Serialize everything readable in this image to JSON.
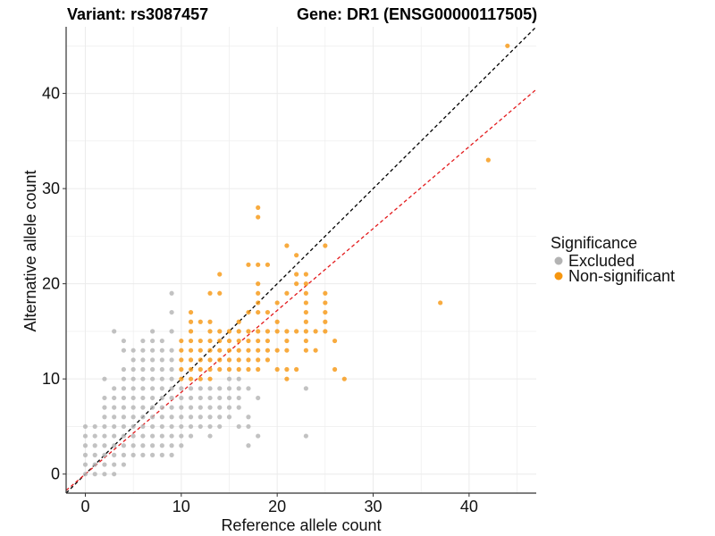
{
  "titles": {
    "variant": "Variant: rs3087457",
    "gene": "Gene: DR1 (ENSG00000117505)"
  },
  "colors": {
    "excluded": "#b3b3b3",
    "non_significant": "#f6960f",
    "identity_line": "#000000",
    "fit_line": "#e31a1c",
    "grid": "#ebebeb"
  },
  "chart_data": {
    "type": "scatter",
    "xlabel": "Reference allele count",
    "ylabel": "Alternative allele count",
    "xlim": [
      -2,
      47
    ],
    "ylim": [
      -2,
      47
    ],
    "xticks": [
      0,
      10,
      20,
      30,
      40
    ],
    "yticks": [
      0,
      10,
      20,
      30,
      40
    ],
    "grid": true,
    "legend": {
      "title": "Significance",
      "position": "right",
      "entries": [
        "Excluded",
        "Non-significant"
      ]
    },
    "reference_lines": [
      {
        "style": "dashed",
        "color": "black",
        "slope": 1,
        "intercept": 0
      },
      {
        "style": "dashed",
        "color": "red",
        "slope": 0.86,
        "intercept": 0
      }
    ],
    "series": [
      {
        "name": "Excluded",
        "points": [
          [
            0,
            0
          ],
          [
            0,
            1
          ],
          [
            0,
            2
          ],
          [
            0,
            3
          ],
          [
            0,
            4
          ],
          [
            0,
            5
          ],
          [
            1,
            0
          ],
          [
            1,
            1
          ],
          [
            1,
            2
          ],
          [
            1,
            3
          ],
          [
            1,
            4
          ],
          [
            1,
            5
          ],
          [
            2,
            0
          ],
          [
            2,
            1
          ],
          [
            2,
            2
          ],
          [
            2,
            3
          ],
          [
            2,
            4
          ],
          [
            2,
            5
          ],
          [
            2,
            6
          ],
          [
            2,
            7
          ],
          [
            2,
            8
          ],
          [
            2,
            10
          ],
          [
            3,
            0
          ],
          [
            3,
            1
          ],
          [
            3,
            2
          ],
          [
            3,
            3
          ],
          [
            3,
            4
          ],
          [
            3,
            5
          ],
          [
            3,
            6
          ],
          [
            3,
            7
          ],
          [
            3,
            8
          ],
          [
            3,
            9
          ],
          [
            3,
            15
          ],
          [
            4,
            1
          ],
          [
            4,
            2
          ],
          [
            4,
            3
          ],
          [
            4,
            4
          ],
          [
            4,
            5
          ],
          [
            4,
            6
          ],
          [
            4,
            7
          ],
          [
            4,
            8
          ],
          [
            4,
            9
          ],
          [
            4,
            10
          ],
          [
            4,
            11
          ],
          [
            4,
            13
          ],
          [
            4,
            14
          ],
          [
            5,
            2
          ],
          [
            5,
            3
          ],
          [
            5,
            4
          ],
          [
            5,
            5
          ],
          [
            5,
            6
          ],
          [
            5,
            7
          ],
          [
            5,
            8
          ],
          [
            5,
            9
          ],
          [
            5,
            10
          ],
          [
            5,
            11
          ],
          [
            5,
            12
          ],
          [
            5,
            13
          ],
          [
            6,
            2
          ],
          [
            6,
            3
          ],
          [
            6,
            4
          ],
          [
            6,
            5
          ],
          [
            6,
            6
          ],
          [
            6,
            7
          ],
          [
            6,
            8
          ],
          [
            6,
            9
          ],
          [
            6,
            10
          ],
          [
            6,
            11
          ],
          [
            6,
            12
          ],
          [
            6,
            13
          ],
          [
            6,
            14
          ],
          [
            7,
            2
          ],
          [
            7,
            3
          ],
          [
            7,
            4
          ],
          [
            7,
            5
          ],
          [
            7,
            6
          ],
          [
            7,
            7
          ],
          [
            7,
            8
          ],
          [
            7,
            9
          ],
          [
            7,
            10
          ],
          [
            7,
            11
          ],
          [
            7,
            12
          ],
          [
            7,
            13
          ],
          [
            7,
            14
          ],
          [
            7,
            15
          ],
          [
            8,
            2
          ],
          [
            8,
            3
          ],
          [
            8,
            4
          ],
          [
            8,
            5
          ],
          [
            8,
            6
          ],
          [
            8,
            7
          ],
          [
            8,
            8
          ],
          [
            8,
            9
          ],
          [
            8,
            10
          ],
          [
            8,
            11
          ],
          [
            8,
            12
          ],
          [
            8,
            13
          ],
          [
            8,
            14
          ],
          [
            9,
            2
          ],
          [
            9,
            3
          ],
          [
            9,
            4
          ],
          [
            9,
            5
          ],
          [
            9,
            6
          ],
          [
            9,
            7
          ],
          [
            9,
            8
          ],
          [
            9,
            9
          ],
          [
            9,
            10
          ],
          [
            9,
            11
          ],
          [
            9,
            12
          ],
          [
            9,
            13
          ],
          [
            9,
            15
          ],
          [
            9,
            17
          ],
          [
            9,
            19
          ],
          [
            10,
            3
          ],
          [
            10,
            4
          ],
          [
            10,
            5
          ],
          [
            10,
            6
          ],
          [
            10,
            7
          ],
          [
            10,
            8
          ],
          [
            10,
            9
          ],
          [
            11,
            4
          ],
          [
            11,
            5
          ],
          [
            11,
            6
          ],
          [
            11,
            7
          ],
          [
            11,
            8
          ],
          [
            11,
            9
          ],
          [
            12,
            5
          ],
          [
            12,
            6
          ],
          [
            12,
            7
          ],
          [
            12,
            8
          ],
          [
            12,
            9
          ],
          [
            13,
            4
          ],
          [
            13,
            5
          ],
          [
            13,
            6
          ],
          [
            13,
            7
          ],
          [
            13,
            8
          ],
          [
            13,
            9
          ],
          [
            14,
            5
          ],
          [
            14,
            6
          ],
          [
            14,
            7
          ],
          [
            14,
            8
          ],
          [
            14,
            9
          ],
          [
            15,
            6
          ],
          [
            15,
            7
          ],
          [
            15,
            8
          ],
          [
            15,
            9
          ],
          [
            15,
            10
          ],
          [
            16,
            5
          ],
          [
            16,
            7
          ],
          [
            16,
            8
          ],
          [
            16,
            9
          ],
          [
            16,
            10
          ],
          [
            17,
            3
          ],
          [
            17,
            5
          ],
          [
            17,
            6
          ],
          [
            17,
            9
          ],
          [
            18,
            4
          ],
          [
            18,
            8
          ],
          [
            23,
            4
          ],
          [
            23,
            9
          ]
        ]
      },
      {
        "name": "Non-significant",
        "points": [
          [
            10,
            10
          ],
          [
            10,
            11
          ],
          [
            10,
            12
          ],
          [
            10,
            13
          ],
          [
            10,
            14
          ],
          [
            11,
            10
          ],
          [
            11,
            11
          ],
          [
            11,
            12
          ],
          [
            11,
            13
          ],
          [
            11,
            14
          ],
          [
            11,
            15
          ],
          [
            11,
            16
          ],
          [
            11,
            17
          ],
          [
            12,
            10
          ],
          [
            12,
            11
          ],
          [
            12,
            12
          ],
          [
            12,
            13
          ],
          [
            12,
            14
          ],
          [
            12,
            16
          ],
          [
            13,
            10
          ],
          [
            13,
            11
          ],
          [
            13,
            12
          ],
          [
            13,
            13
          ],
          [
            13,
            14
          ],
          [
            13,
            15
          ],
          [
            13,
            16
          ],
          [
            13,
            19
          ],
          [
            14,
            11
          ],
          [
            14,
            12
          ],
          [
            14,
            13
          ],
          [
            14,
            14
          ],
          [
            14,
            15
          ],
          [
            14,
            19
          ],
          [
            14,
            21
          ],
          [
            15,
            11
          ],
          [
            15,
            12
          ],
          [
            15,
            13
          ],
          [
            15,
            14
          ],
          [
            15,
            15
          ],
          [
            16,
            11
          ],
          [
            16,
            12
          ],
          [
            16,
            13
          ],
          [
            16,
            14
          ],
          [
            16,
            15
          ],
          [
            16,
            16
          ],
          [
            17,
            11
          ],
          [
            17,
            12
          ],
          [
            17,
            13
          ],
          [
            17,
            14
          ],
          [
            17,
            15
          ],
          [
            17,
            17
          ],
          [
            17,
            22
          ],
          [
            18,
            11
          ],
          [
            18,
            12
          ],
          [
            18,
            13
          ],
          [
            18,
            14
          ],
          [
            18,
            15
          ],
          [
            18,
            17
          ],
          [
            18,
            18
          ],
          [
            18,
            19
          ],
          [
            18,
            20
          ],
          [
            18,
            22
          ],
          [
            18,
            27
          ],
          [
            18,
            28
          ],
          [
            19,
            12
          ],
          [
            19,
            13
          ],
          [
            19,
            14
          ],
          [
            19,
            15
          ],
          [
            19,
            17
          ],
          [
            19,
            22
          ],
          [
            20,
            11
          ],
          [
            20,
            13
          ],
          [
            20,
            15
          ],
          [
            20,
            16
          ],
          [
            20,
            18
          ],
          [
            21,
            10
          ],
          [
            21,
            11
          ],
          [
            21,
            13
          ],
          [
            21,
            14
          ],
          [
            21,
            15
          ],
          [
            21,
            19
          ],
          [
            21,
            24
          ],
          [
            22,
            11
          ],
          [
            22,
            15
          ],
          [
            22,
            20
          ],
          [
            22,
            21
          ],
          [
            22,
            23
          ],
          [
            23,
            13
          ],
          [
            23,
            14
          ],
          [
            23,
            15
          ],
          [
            23,
            16
          ],
          [
            23,
            17
          ],
          [
            23,
            18
          ],
          [
            23,
            19
          ],
          [
            23,
            20
          ],
          [
            23,
            21
          ],
          [
            24,
            13
          ],
          [
            24,
            15
          ],
          [
            25,
            15
          ],
          [
            25,
            16
          ],
          [
            25,
            17
          ],
          [
            25,
            18
          ],
          [
            25,
            19
          ],
          [
            25,
            24
          ],
          [
            26,
            11
          ],
          [
            26,
            14
          ],
          [
            27,
            10
          ],
          [
            37,
            18
          ],
          [
            42,
            33
          ],
          [
            44,
            45
          ]
        ]
      }
    ]
  }
}
